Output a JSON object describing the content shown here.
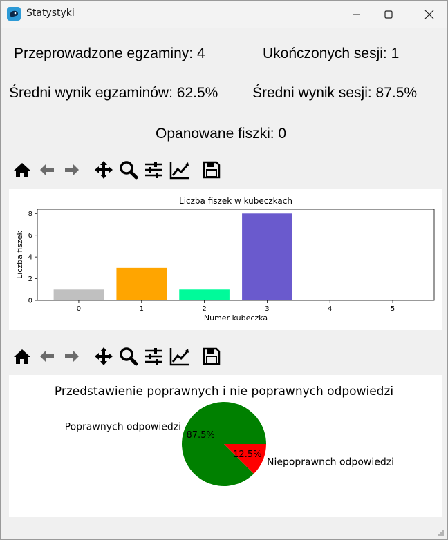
{
  "window": {
    "title": "Statystyki"
  },
  "stats": {
    "exams_done": "Przeprowadzone egzaminy: 4",
    "sessions_done": "Ukończonych sesji: 1",
    "avg_exam": "Średni wynik egzaminów: 62.5%",
    "avg_session": "Średni wynik sesji: 87.5%",
    "mastered": "Opanowane fiszki: 0"
  },
  "toolbar_icons": [
    "home-icon",
    "back-arrow-icon",
    "forward-arrow-icon",
    "pan-icon",
    "zoom-icon",
    "configure-subplots-icon",
    "edit-axis-icon",
    "save-icon"
  ],
  "chart_data": [
    {
      "type": "bar",
      "title": "Liczba fiszek w kubeczkach",
      "xlabel": "Numer kubeczka",
      "ylabel": "Liczba fiszek",
      "categories": [
        "0",
        "1",
        "2",
        "3",
        "4",
        "5"
      ],
      "values": [
        1,
        3,
        1,
        8,
        0,
        0
      ],
      "colors": [
        "#c0c0c0",
        "#ffa500",
        "#00fa9a",
        "#6a5acd",
        "#000000",
        "#000000"
      ],
      "yticks": [
        "0",
        "2",
        "4",
        "6",
        "8"
      ],
      "ylim": [
        0,
        8.4
      ]
    },
    {
      "type": "pie",
      "title": "Przedstawienie poprawnych i nie poprawnych odpowiedzi",
      "labels": [
        "Poprawnych odpowiedzi",
        "Niepoprawnch odpowiedzi"
      ],
      "values": [
        87.5,
        12.5
      ],
      "pct_labels": [
        "87.5%",
        "12.5%"
      ],
      "colors": [
        "#008000",
        "#ff0000"
      ]
    }
  ]
}
